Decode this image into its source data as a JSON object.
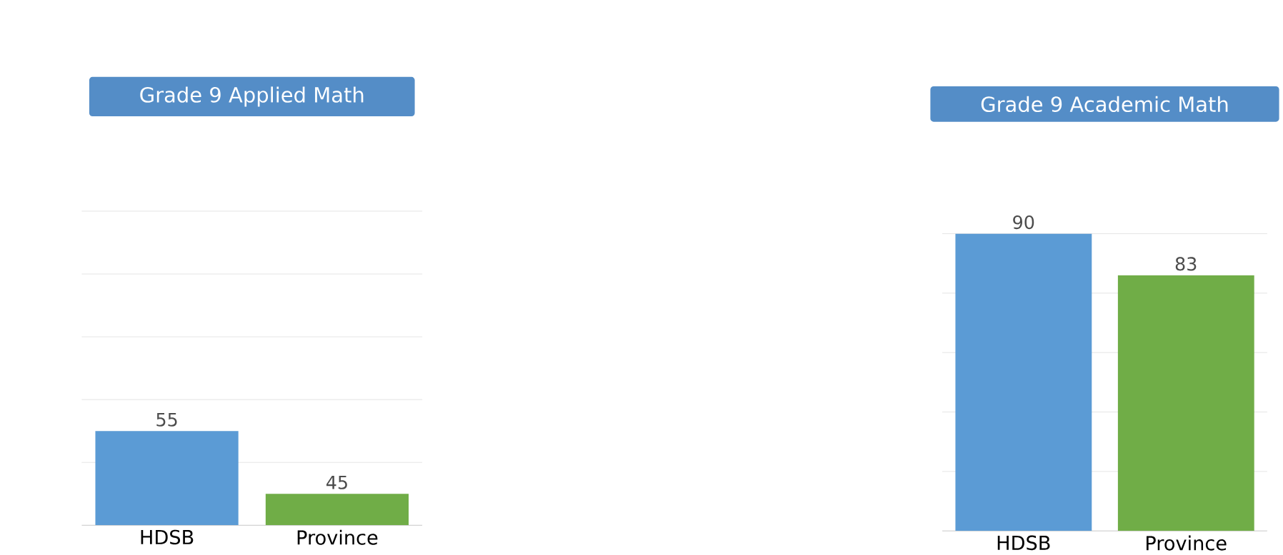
{
  "chart_data": [
    {
      "type": "bar",
      "title": "Grade 9 Applied Math",
      "categories": [
        "HDSB",
        "Province"
      ],
      "values": [
        55,
        45
      ],
      "colors": [
        "#5b9bd5",
        "#70ad47"
      ],
      "ylim": [
        40,
        90
      ],
      "yticks": [
        {
          "value": 50,
          "label": null
        },
        {
          "value": 60,
          "label": null
        },
        {
          "value": 70,
          "label": null
        },
        {
          "value": 80,
          "label": null
        },
        {
          "value": 90,
          "label": null
        }
      ],
      "grid": "y",
      "tick_labels": "x",
      "data_labels": true
    },
    {
      "type": "bar",
      "title": "Grade 9 Academic Math",
      "categories": [
        "HDSB",
        "Province"
      ],
      "values": [
        90,
        83
      ],
      "colors": [
        "#5b9bd5",
        "#70ad47"
      ],
      "ylim": [
        40,
        90
      ],
      "yticks": [
        {
          "value": 50,
          "label": null
        },
        {
          "value": 60,
          "label": null
        },
        {
          "value": 70,
          "label": null
        },
        {
          "value": 80,
          "label": null
        },
        {
          "value": 90,
          "label": null
        }
      ],
      "grid": "y",
      "tick_labels": "x",
      "data_labels": true
    }
  ]
}
